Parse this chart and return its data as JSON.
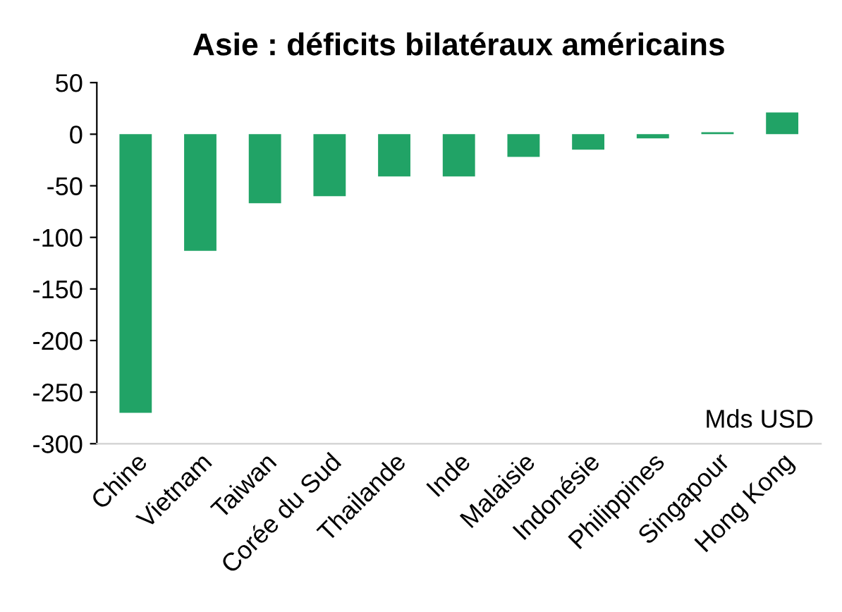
{
  "chart_data": {
    "type": "bar",
    "title": "Asie : déficits bilatéraux américains",
    "categories": [
      "Chine",
      "Vietnam",
      "Taiwan",
      "Corée du Sud",
      "Thailande",
      "Inde",
      "Malaisie",
      "Indonésie",
      "Philippines",
      "Singapour",
      "Hong Kong"
    ],
    "values": [
      -270,
      -113,
      -67,
      -60,
      -41,
      -41,
      -22,
      -15,
      -4,
      2,
      21
    ],
    "color": "#21a366",
    "ylim": [
      -300,
      50
    ],
    "yticks": [
      -300,
      -250,
      -200,
      -150,
      -100,
      -50,
      0,
      50
    ],
    "annotations": [
      "Mds USD"
    ],
    "grid": false,
    "legend": false
  }
}
